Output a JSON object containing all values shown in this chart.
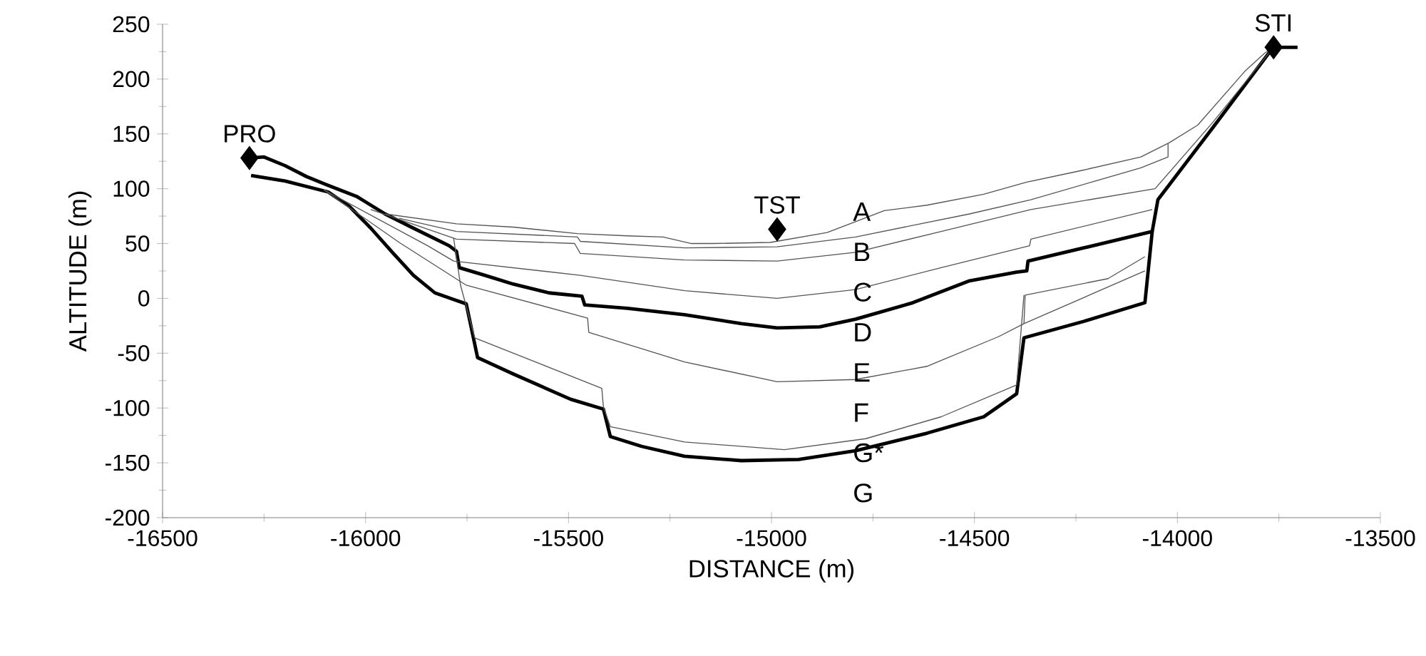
{
  "chart_data": {
    "type": "line",
    "xlabel": "DISTANCE (m)",
    "ylabel": "ALTITUDE (m)",
    "xlim": [
      -16500,
      -13500
    ],
    "ylim": [
      -200,
      250
    ],
    "xticks": [
      -16500,
      -16000,
      -15500,
      -15000,
      -14500,
      -14000,
      -13500
    ],
    "yticks": [
      -200,
      -150,
      -100,
      -50,
      0,
      50,
      100,
      150,
      200,
      250
    ],
    "grid": false,
    "legend": false,
    "marker": "none",
    "series": [
      {
        "color": "#000000",
        "x": [
          -16286,
          -16251,
          -16198,
          -16145,
          -16092,
          -16022,
          -15952,
          -15882,
          -15794,
          -15776,
          -15769,
          -15706,
          -15636,
          -15548,
          -15467,
          -15460,
          -15355,
          -15214,
          -15074,
          -14986,
          -14881,
          -14793,
          -14652,
          -14512,
          -14396,
          -14371,
          -14368,
          -14231,
          -14062,
          -14048,
          -13914,
          -13774,
          -13763,
          -13704
        ],
        "values": [
          128,
          129,
          121,
          111,
          103,
          93,
          77,
          64,
          48,
          43,
          28,
          21,
          13,
          5,
          2,
          -6,
          -9,
          -15,
          -23,
          -27,
          -26,
          -19,
          -4,
          16,
          24,
          25,
          34,
          46,
          61,
          90,
          155,
          224,
          229,
          229
        ]
      },
      {
        "color": "#000000",
        "x": [
          -16282,
          -16198,
          -16092,
          -16040,
          -15987,
          -15934,
          -15882,
          -15829,
          -15783,
          -15752,
          -15724,
          -15636,
          -15495,
          -15414,
          -15397,
          -15320,
          -15214,
          -15074,
          -14933,
          -14793,
          -14617,
          -14477,
          -14396,
          -14378,
          -14231,
          -14080,
          -14062
        ],
        "values": [
          112,
          107,
          97,
          84,
          64,
          42,
          21,
          5,
          -1,
          -5,
          -54,
          -69,
          -92,
          -101,
          -126,
          -135,
          -144,
          -148,
          -147,
          -139,
          -123,
          -108,
          -87,
          -36,
          -21,
          -4,
          61
        ]
      },
      {
        "color": "#555555",
        "x": [
          -15952,
          -15776,
          -15636,
          -15478,
          -15355,
          -15267,
          -15197,
          -15144,
          -15003,
          -14863,
          -14793,
          -14722,
          -14617,
          -14477,
          -14371,
          -14231,
          -14090,
          -14020,
          -13950,
          -13834,
          -13784,
          -13763
        ],
        "values": [
          77,
          68,
          65,
          59,
          57,
          56,
          50,
          50,
          51,
          60,
          70,
          80,
          85,
          95,
          106,
          117,
          129,
          142,
          158,
          207,
          224,
          229
        ]
      },
      {
        "color": "#555555",
        "x": [
          -15917,
          -15776,
          -15478,
          -15471,
          -15214,
          -14986,
          -14793,
          -14512,
          -14361,
          -14090,
          -14023,
          -14023
        ],
        "values": [
          73,
          61,
          56,
          52,
          46,
          47,
          56,
          77,
          90,
          119,
          129,
          141
        ]
      },
      {
        "color": "#555555",
        "x": [
          -15987,
          -15776,
          -15485,
          -15471,
          -15214,
          -14986,
          -14793,
          -14582,
          -14361,
          -14055,
          -13914,
          -13763
        ],
        "values": [
          81,
          54,
          50,
          41,
          35,
          34,
          42,
          61,
          81,
          100,
          160,
          229
        ]
      },
      {
        "color": "#555555",
        "x": [
          -16103,
          -15847,
          -15783,
          -15471,
          -15214,
          -14986,
          -14793,
          -14582,
          -14364,
          -14361,
          -14062
        ],
        "values": [
          99,
          48,
          34,
          21,
          7,
          0,
          8,
          28,
          48,
          54,
          81
        ]
      },
      {
        "color": "#555555",
        "x": [
          -16103,
          -15917,
          -15752,
          -15453,
          -15450,
          -15214,
          -14986,
          -14793,
          -14617,
          -14441,
          -14378,
          -14080
        ],
        "values": [
          99,
          51,
          12,
          -18,
          -31,
          -58,
          -76,
          -74,
          -62,
          -35,
          -23,
          25
        ]
      },
      {
        "color": "#555555",
        "x": [
          -14378,
          -14375,
          -14171,
          -14080
        ],
        "values": [
          -23,
          3,
          18,
          38
        ]
      },
      {
        "color": "#555555",
        "x": [
          -15783,
          -15766,
          -15731,
          -15418,
          -15414,
          -15397,
          -15214,
          -14968,
          -14768,
          -14582,
          -14396,
          -14378
        ],
        "values": [
          55,
          12,
          -36,
          -82,
          -99,
          -117,
          -131,
          -138,
          -128,
          -108,
          -79,
          3
        ]
      },
      {
        "type": "scatter",
        "name": "PRO",
        "color": "#000000",
        "marker": "diamond",
        "x": [
          -16286
        ],
        "values": [
          128
        ]
      },
      {
        "type": "scatter",
        "name": "TST",
        "color": "#000000",
        "marker": "diamond",
        "x": [
          -14986
        ],
        "values": [
          63
        ]
      },
      {
        "type": "scatter",
        "name": "STI",
        "color": "#000000",
        "marker": "diamond",
        "x": [
          -13763
        ],
        "values": [
          229
        ]
      }
    ],
    "annotations": [
      "A",
      "B",
      "C",
      "D",
      "E",
      "F",
      "G*",
      "G"
    ]
  }
}
